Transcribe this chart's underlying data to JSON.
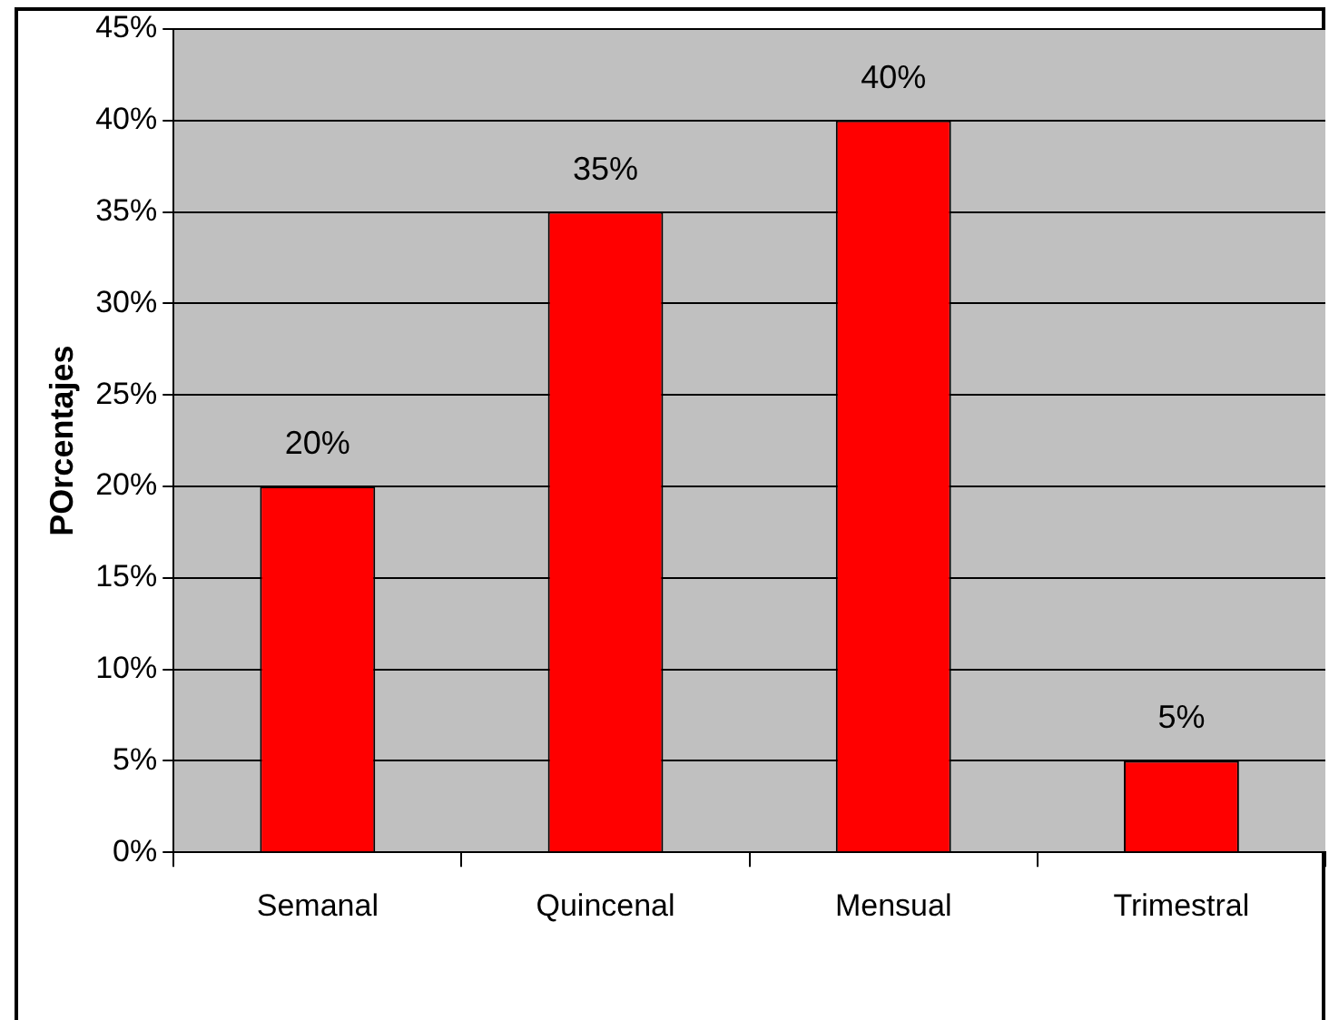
{
  "chart_data": {
    "type": "bar",
    "ylabel": "POrcentajes",
    "categories": [
      "Semanal",
      "Quincenal",
      "Mensual",
      "Trimestral"
    ],
    "values": [
      20,
      35,
      40,
      5
    ],
    "color": "#ff0000",
    "value_labels": [
      "20%",
      "35%",
      "40%",
      "5%"
    ],
    "ylim": [
      0,
      45
    ],
    "yticks": [
      {
        "value": 0,
        "label": "0%"
      },
      {
        "value": 5,
        "label": "5%"
      },
      {
        "value": 10,
        "label": "10%"
      },
      {
        "value": 15,
        "label": "15%"
      },
      {
        "value": 20,
        "label": "20%"
      },
      {
        "value": 25,
        "label": "25%"
      },
      {
        "value": 30,
        "label": "30%"
      },
      {
        "value": 35,
        "label": "35%"
      },
      {
        "value": 40,
        "label": "40%"
      },
      {
        "value": 45,
        "label": "45%"
      }
    ],
    "grid": "y",
    "legend": false
  }
}
